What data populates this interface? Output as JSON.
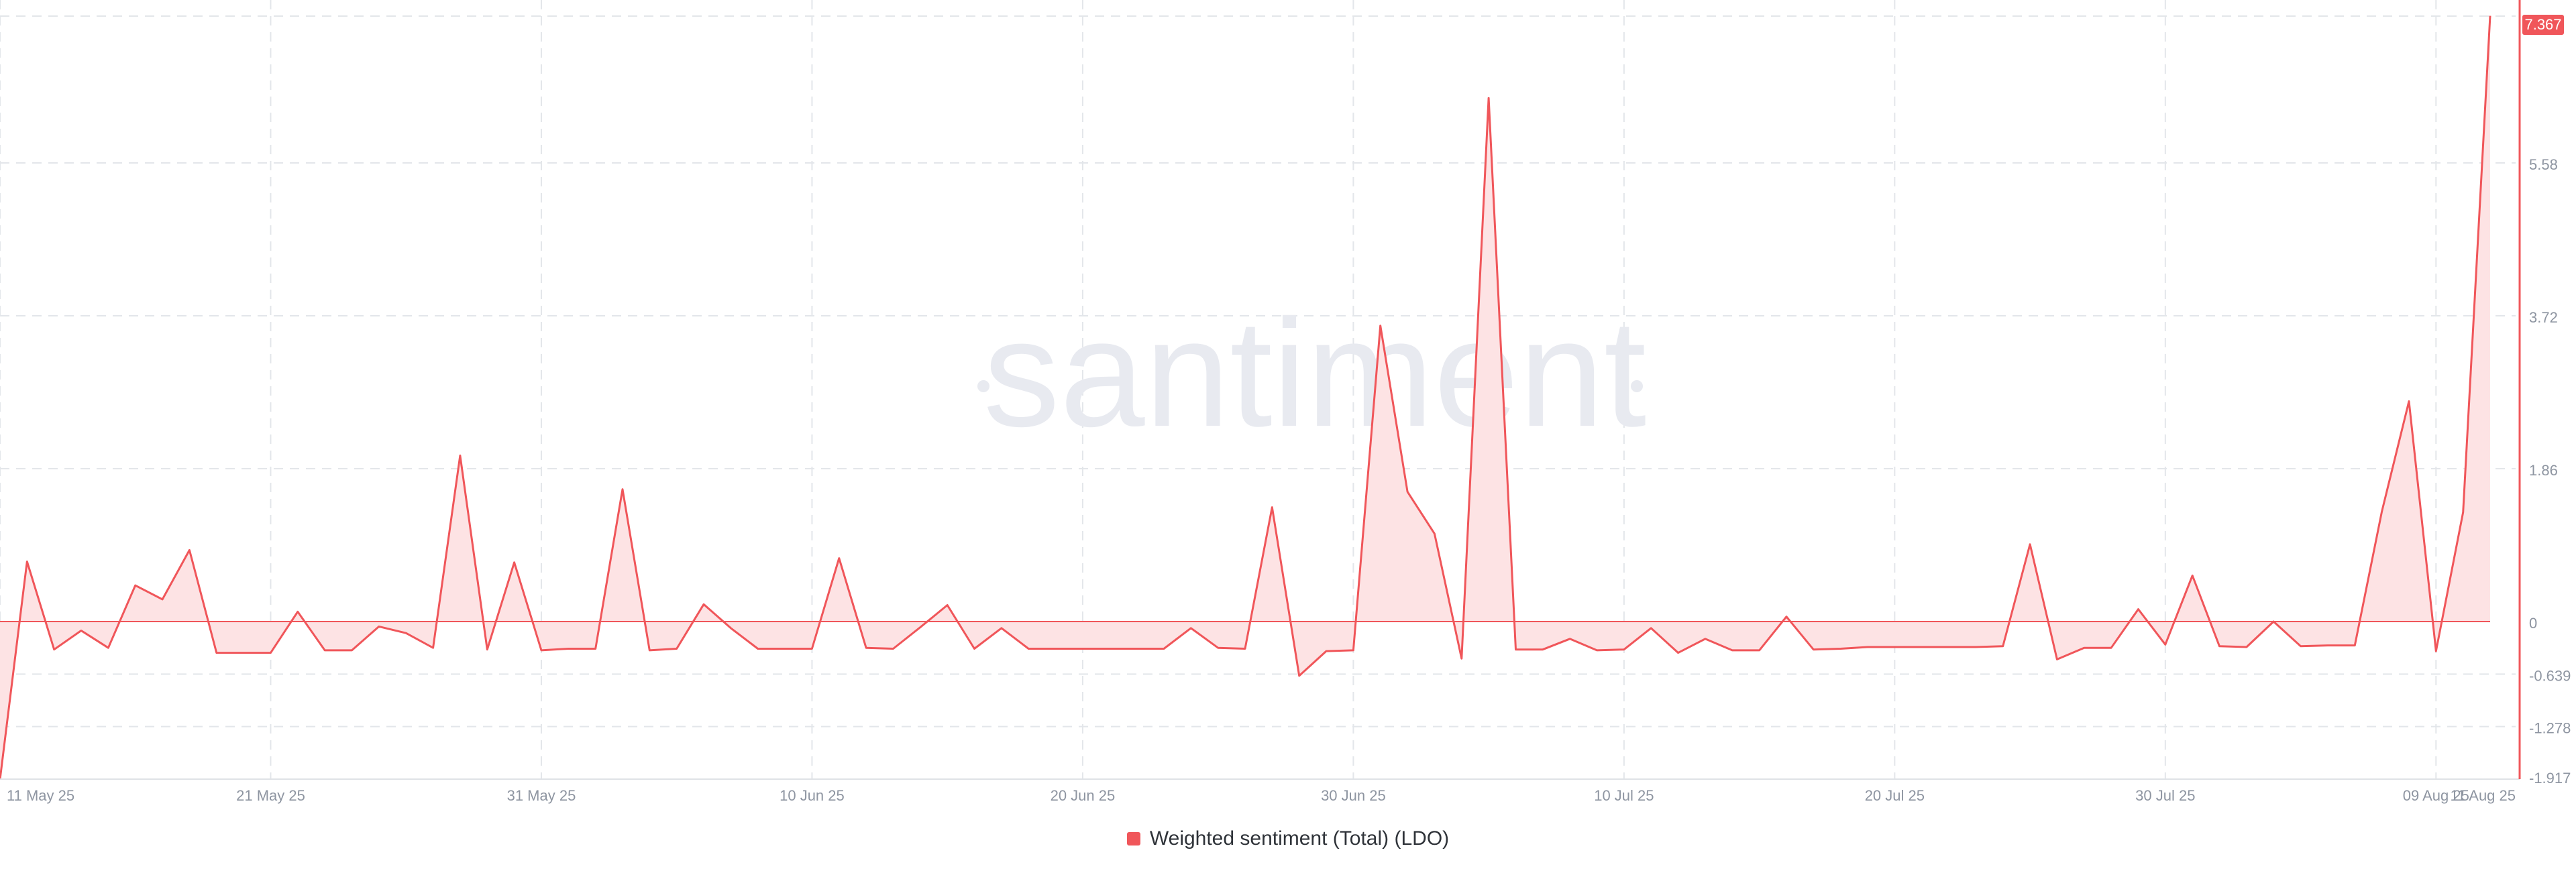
{
  "watermark": "santiment",
  "colors": {
    "line": "#f0565a",
    "fill": "#fde3e4",
    "grid": "#e3e6ea",
    "tick_text": "#8e95a1",
    "badge_bg": "#f0565a",
    "badge_text": "#ffffff",
    "watermark": "#e8eaf0"
  },
  "legend": {
    "label": "Weighted sentiment (Total) (LDO)"
  },
  "chart_data": {
    "type": "area",
    "series": [
      {
        "name": "Weighted sentiment (Total) (LDO)",
        "x": [
          "2025-05-11",
          "2025-05-12",
          "2025-05-13",
          "2025-05-14",
          "2025-05-15",
          "2025-05-16",
          "2025-05-17",
          "2025-05-18",
          "2025-05-19",
          "2025-05-20",
          "2025-05-21",
          "2025-05-22",
          "2025-05-23",
          "2025-05-24",
          "2025-05-25",
          "2025-05-26",
          "2025-05-27",
          "2025-05-28",
          "2025-05-29",
          "2025-05-30",
          "2025-05-31",
          "2025-06-01",
          "2025-06-02",
          "2025-06-03",
          "2025-06-04",
          "2025-06-05",
          "2025-06-06",
          "2025-06-07",
          "2025-06-08",
          "2025-06-09",
          "2025-06-10",
          "2025-06-11",
          "2025-06-12",
          "2025-06-13",
          "2025-06-14",
          "2025-06-15",
          "2025-06-16",
          "2025-06-17",
          "2025-06-18",
          "2025-06-19",
          "2025-06-20",
          "2025-06-21",
          "2025-06-22",
          "2025-06-23",
          "2025-06-24",
          "2025-06-25",
          "2025-06-26",
          "2025-06-27",
          "2025-06-28",
          "2025-06-29",
          "2025-06-30",
          "2025-07-01",
          "2025-07-02",
          "2025-07-03",
          "2025-07-04",
          "2025-07-05",
          "2025-07-06",
          "2025-07-07",
          "2025-07-08",
          "2025-07-09",
          "2025-07-10",
          "2025-07-11",
          "2025-07-12",
          "2025-07-13",
          "2025-07-14",
          "2025-07-15",
          "2025-07-16",
          "2025-07-17",
          "2025-07-18",
          "2025-07-19",
          "2025-07-20",
          "2025-07-21",
          "2025-07-22",
          "2025-07-23",
          "2025-07-24",
          "2025-07-25",
          "2025-07-26",
          "2025-07-27",
          "2025-07-28",
          "2025-07-29",
          "2025-07-30",
          "2025-07-31",
          "2025-08-01",
          "2025-08-02",
          "2025-08-03",
          "2025-08-04",
          "2025-08-05",
          "2025-08-06",
          "2025-08-07",
          "2025-08-08",
          "2025-08-09",
          "2025-08-10",
          "2025-08-11"
        ],
        "values": [
          -1.92,
          0.73,
          -0.34,
          -0.11,
          -0.32,
          0.44,
          0.27,
          0.87,
          -0.38,
          -0.38,
          -0.38,
          0.12,
          -0.35,
          -0.35,
          -0.06,
          -0.14,
          -0.32,
          2.02,
          -0.34,
          0.72,
          -0.35,
          -0.33,
          -0.33,
          1.61,
          -0.35,
          -0.33,
          0.21,
          -0.08,
          -0.33,
          -0.33,
          -0.33,
          0.77,
          -0.32,
          -0.33,
          -0.07,
          0.2,
          -0.33,
          -0.08,
          -0.33,
          -0.33,
          -0.33,
          -0.33,
          -0.33,
          -0.33,
          -0.08,
          -0.32,
          -0.33,
          1.39,
          -0.66,
          -0.36,
          -0.35,
          3.6,
          1.58,
          1.07,
          -0.45,
          6.37,
          -0.34,
          -0.34,
          -0.21,
          -0.35,
          -0.34,
          -0.08,
          -0.38,
          -0.21,
          -0.35,
          -0.35,
          0.06,
          -0.34,
          -0.33,
          -0.31,
          -0.31,
          -0.31,
          -0.31,
          -0.31,
          -0.3,
          0.94,
          -0.46,
          -0.32,
          -0.32,
          0.15,
          -0.28,
          0.56,
          -0.3,
          -0.31,
          -0.0,
          -0.3,
          -0.29,
          -0.29,
          1.34,
          2.68,
          -0.36,
          1.33,
          7.37
        ]
      }
    ],
    "x_ticks": [
      "11 May 25",
      "21 May 25",
      "31 May 25",
      "10 Jun 25",
      "20 Jun 25",
      "30 Jun 25",
      "10 Jul 25",
      "20 Jul 25",
      "30 Jul 25",
      "09 Aug 25",
      "11 Aug 25"
    ],
    "y_ticks": [
      "5.58",
      "3.72",
      "1.86",
      "0",
      "-0.639",
      "-1.278",
      "-1.917"
    ],
    "ylim": [
      -1.917,
      7.367
    ],
    "last_value_label": "7.367",
    "grid": true,
    "legend_position": "bottom-center"
  }
}
